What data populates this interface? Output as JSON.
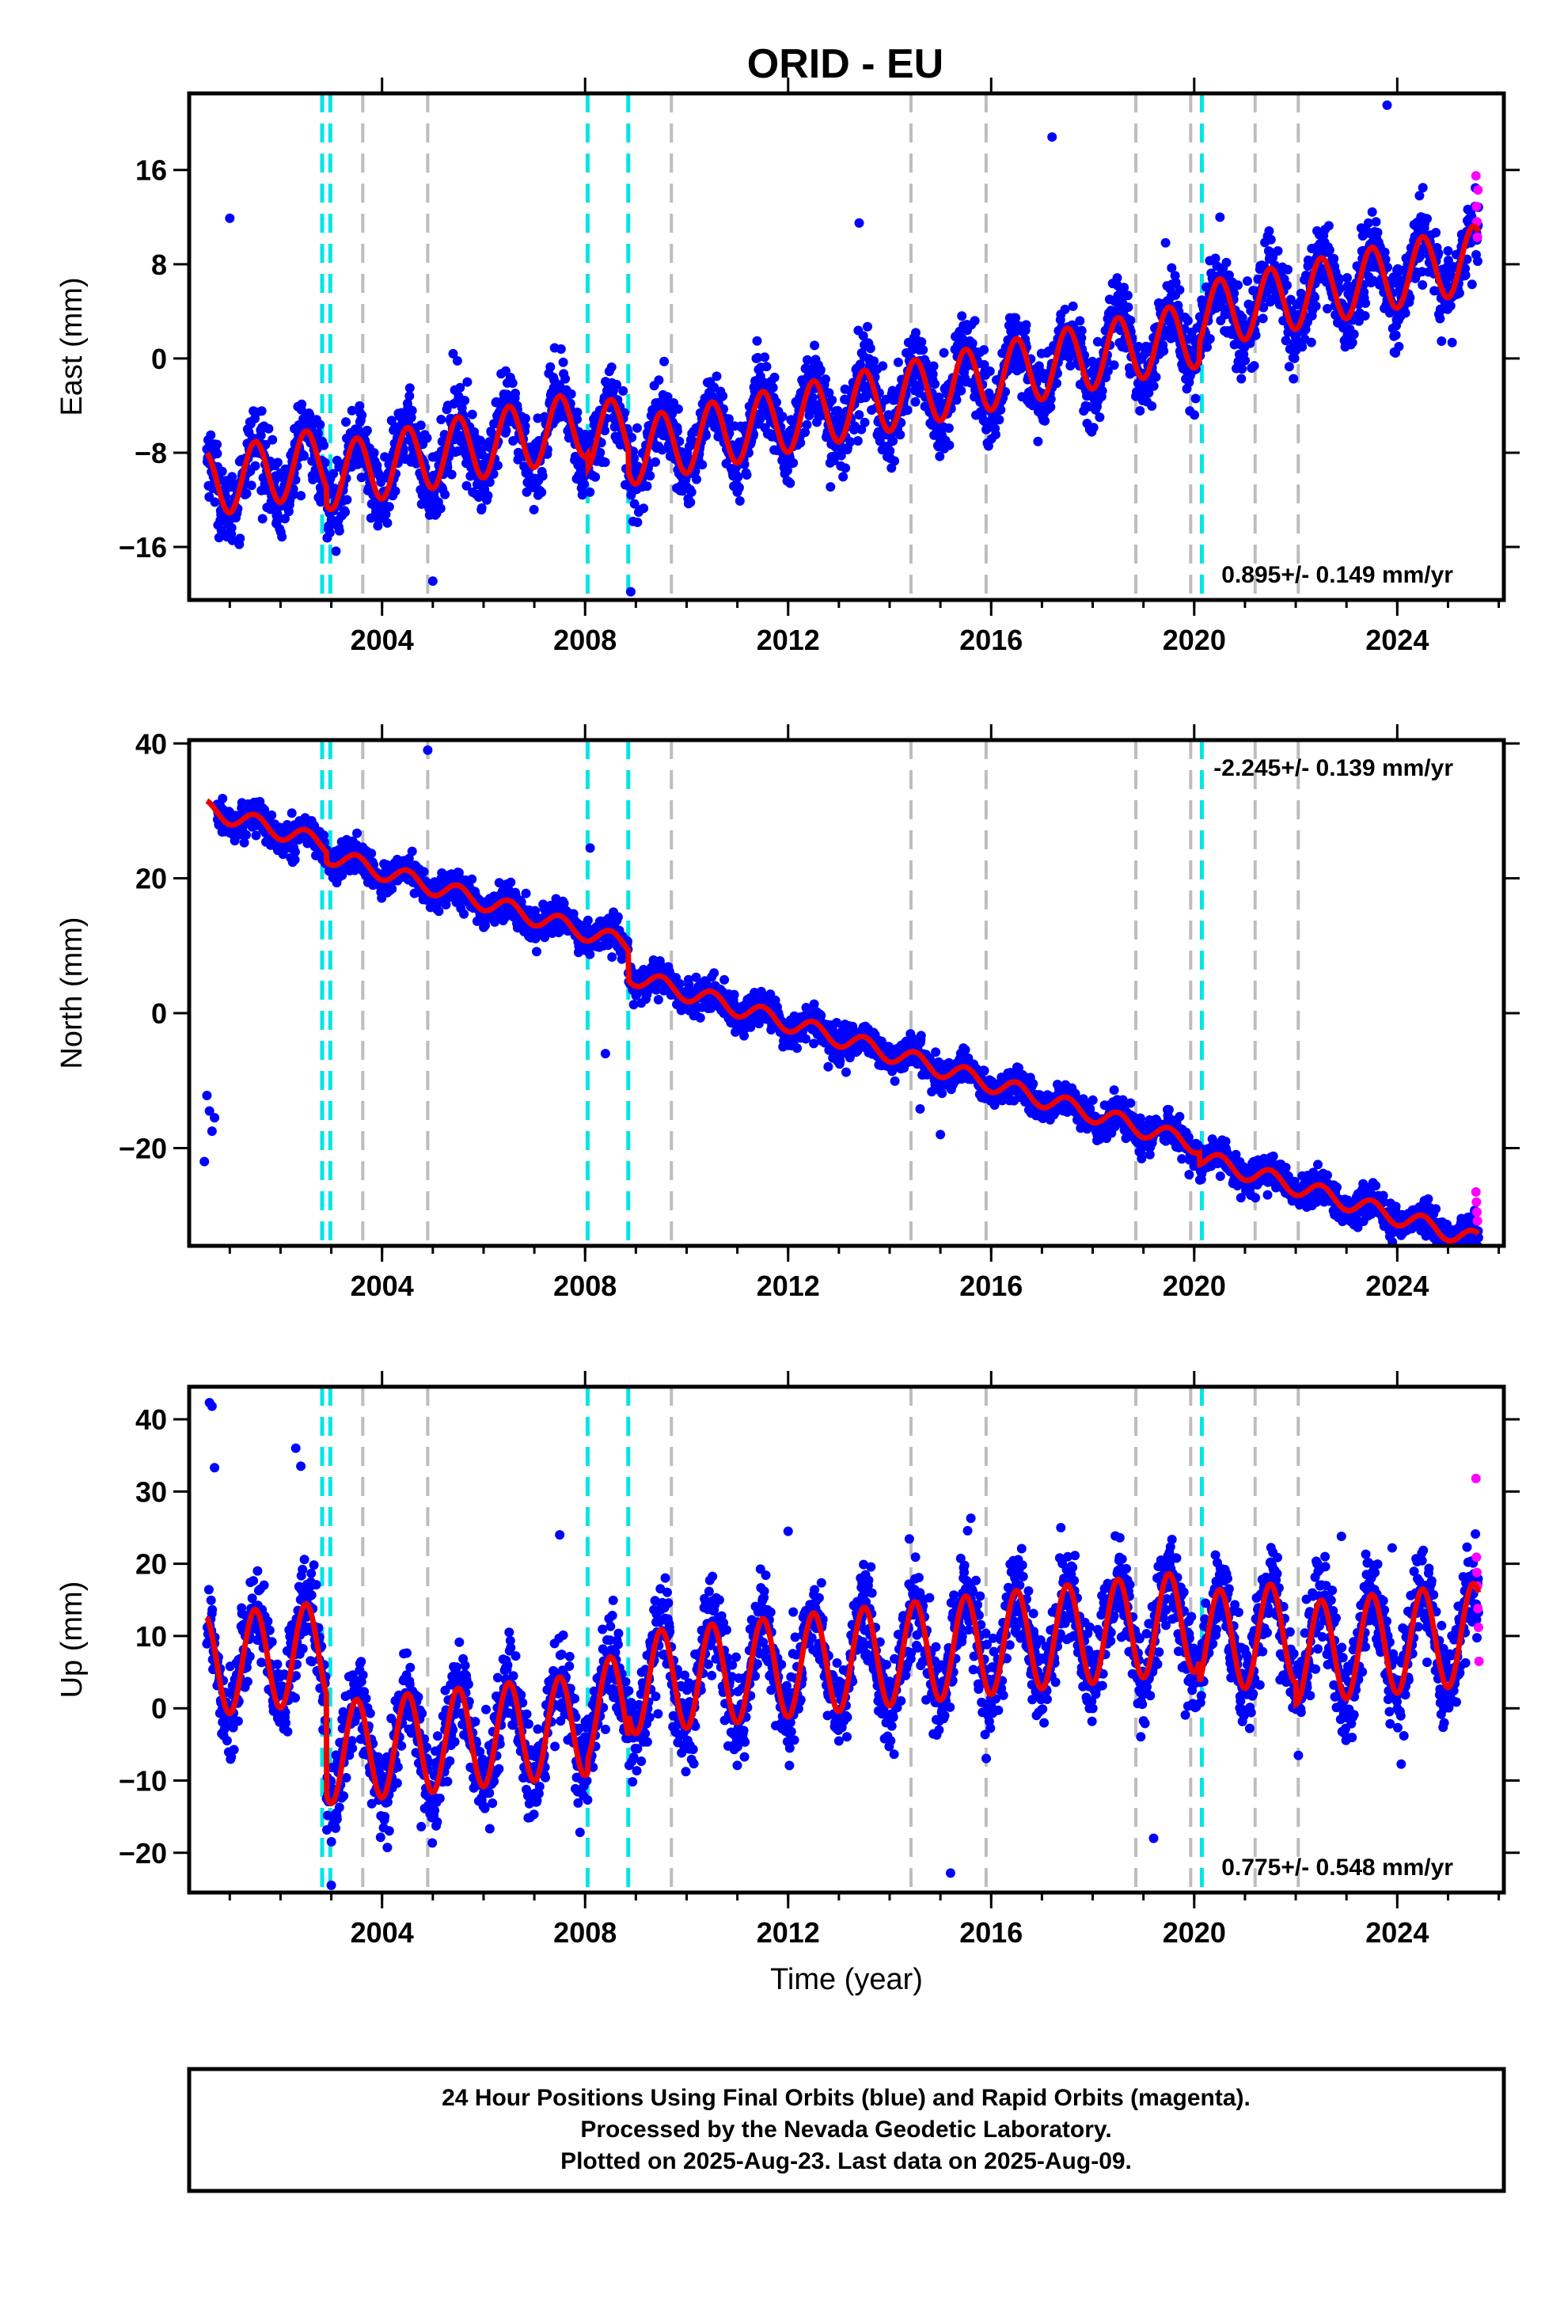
{
  "title": "ORID - EU",
  "footer": {
    "lines": [
      "24 Hour Positions Using Final Orbits (blue) and Rapid Orbits (magenta).",
      "Processed by the Nevada Geodetic Laboratory.",
      "Plotted on 2025-Aug-23. Last data on 2025-Aug-09."
    ]
  },
  "colors": {
    "final_orbits": "#0000ff",
    "rapid_orbits": "#ff00ff",
    "model": "#ee0000",
    "equipment_change": "#00e5e5",
    "earthquake": "#bdbdbd"
  },
  "chart_data": [
    {
      "type": "scatter",
      "ylabel": "East (mm)",
      "xlabel": "",
      "xlim": [
        2000.2,
        2026.1
      ],
      "ylim": [
        -20.5,
        22.5
      ],
      "xticks": [
        2004,
        2008,
        2012,
        2016,
        2020,
        2024
      ],
      "yticks": [
        -16,
        -8,
        0,
        8,
        16
      ],
      "rate_label": "0.895+/- 0.149 mm/yr",
      "rate_position": "bottom-right",
      "model": {
        "rate": 0.895,
        "intercept_2000": -11.2,
        "amplitude": 2.8,
        "noise": 1.6,
        "steps": [
          {
            "t": 2002.9,
            "dy": -1.5
          },
          {
            "t": 2008.05,
            "dy": -1.2
          },
          {
            "t": 2008.85,
            "dy": -2.0
          },
          {
            "t": 2020.1,
            "dy": 1.5
          }
        ]
      },
      "outliers": [
        [
          2001.0,
          11.9
        ],
        [
          2005.4,
          0.4
        ],
        [
          2007.4,
          0.9
        ],
        [
          2013.4,
          11.5
        ],
        [
          2017.2,
          18.8
        ],
        [
          2023.8,
          21.5
        ],
        [
          2005.0,
          -18.9
        ],
        [
          2008.9,
          -19.8
        ]
      ],
      "rapid": [
        [
          2025.55,
          15.5
        ],
        [
          2025.56,
          12.9
        ],
        [
          2025.57,
          11.6
        ],
        [
          2025.58,
          10.3
        ],
        [
          2025.59,
          14.3
        ]
      ]
    },
    {
      "type": "scatter",
      "ylabel": "North (mm)",
      "xlabel": "",
      "xlim": [
        2000.2,
        2026.1
      ],
      "ylim": [
        -34.5,
        40.5
      ],
      "xticks": [
        2004,
        2008,
        2012,
        2016,
        2020,
        2024
      ],
      "yticks": [
        -20,
        0,
        20,
        40
      ],
      "rate_label": "-2.245+/- 0.139 mm/yr",
      "rate_position": "top-right",
      "model": {
        "rate": -2.245,
        "intercept_2000": 31.5,
        "amplitude": 1.3,
        "noise": 1.2,
        "steps": [
          {
            "t": 2002.9,
            "dy": -1.5
          },
          {
            "t": 2008.85,
            "dy": -4.5
          },
          {
            "t": 2020.1,
            "dy": -1.8
          }
        ]
      },
      "outliers": [
        [
          2000.5,
          -22.0
        ],
        [
          2000.55,
          -12.2
        ],
        [
          2000.6,
          -14.5
        ],
        [
          2000.65,
          -17.5
        ],
        [
          2000.7,
          -15.5
        ],
        [
          2004.9,
          39.0
        ],
        [
          2008.1,
          24.5
        ],
        [
          2008.4,
          -6.0
        ],
        [
          2014.6,
          -14.2
        ],
        [
          2015.0,
          -18.0
        ]
      ],
      "rapid": [
        [
          2025.55,
          -26.5
        ],
        [
          2025.56,
          -28.0
        ],
        [
          2025.57,
          -29.5
        ],
        [
          2025.58,
          -30.8
        ]
      ]
    },
    {
      "type": "scatter",
      "ylabel": "Up (mm)",
      "xlabel": "Time (year)",
      "xlim": [
        2000.2,
        2026.1
      ],
      "ylim": [
        -25.5,
        44.5
      ],
      "xticks": [
        2004,
        2008,
        2012,
        2016,
        2020,
        2024
      ],
      "yticks": [
        -20,
        -10,
        0,
        10,
        20,
        30,
        40
      ],
      "rate_label": "0.775+/- 0.548 mm/yr",
      "rate_position": "bottom-right",
      "model": {
        "rate": 0.775,
        "intercept_2000": 5.5,
        "amplitude": 7.0,
        "noise": 3.2,
        "steps": [
          {
            "t": 2002.9,
            "dy": -14.0
          },
          {
            "t": 2008.05,
            "dy": 2.0
          },
          {
            "t": 2008.85,
            "dy": 3.0
          },
          {
            "t": 2020.1,
            "dy": -3.0
          },
          {
            "t": 2022.0,
            "dy": -3.0
          }
        ]
      },
      "outliers": [
        [
          2000.6,
          42.3
        ],
        [
          2000.65,
          41.8
        ],
        [
          2000.7,
          33.3
        ],
        [
          2002.3,
          36.0
        ],
        [
          2002.4,
          33.5
        ],
        [
          2007.5,
          24.0
        ],
        [
          2012.0,
          24.5
        ],
        [
          2015.6,
          26.3
        ],
        [
          2022.9,
          23.8
        ],
        [
          2023.9,
          22.2
        ],
        [
          2003.0,
          -24.5
        ],
        [
          2015.2,
          -22.8
        ],
        [
          2019.2,
          -18.0
        ]
      ],
      "rapid": [
        [
          2025.55,
          31.8
        ],
        [
          2025.56,
          20.9
        ],
        [
          2025.57,
          18.8
        ],
        [
          2025.58,
          16.9
        ],
        [
          2025.59,
          13.8
        ],
        [
          2025.6,
          11.2
        ],
        [
          2025.61,
          6.5
        ]
      ]
    }
  ],
  "equipment_changes": [
    2002.82,
    2002.98,
    2008.05,
    2008.85,
    2020.15
  ],
  "earthquakes": [
    2003.62,
    2004.9,
    2009.7,
    2014.42,
    2015.9,
    2018.85,
    2019.93,
    2021.2,
    2022.05
  ]
}
